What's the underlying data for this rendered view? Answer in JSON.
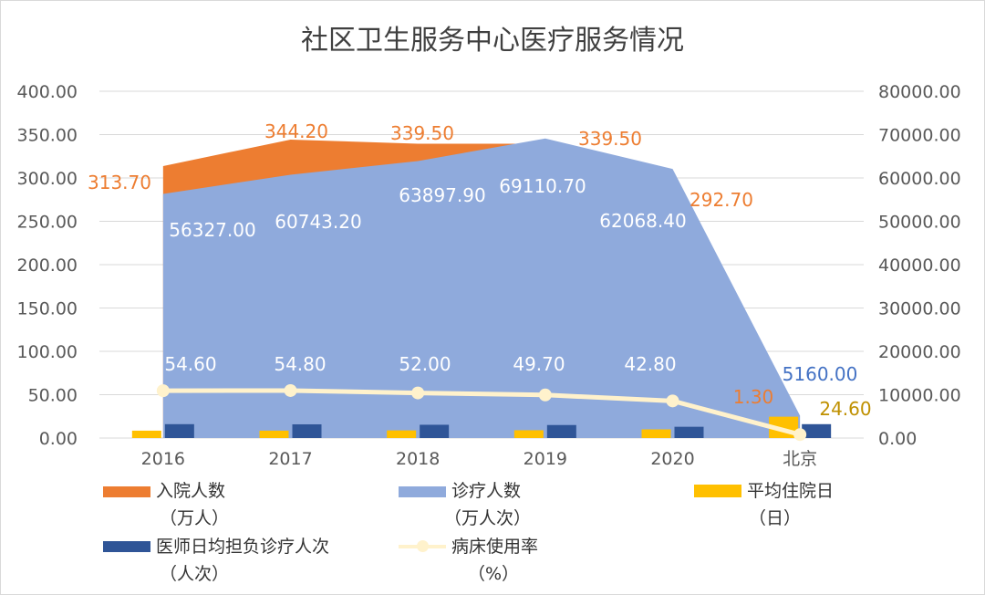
{
  "chart_data": {
    "type": "combo",
    "title": "社区卫生服务中心医疗服务情况",
    "categories": [
      "2016",
      "2017",
      "2018",
      "2019",
      "2020",
      "北京"
    ],
    "left_axis": {
      "min": 0,
      "max": 400,
      "ticks": [
        "0.00",
        "50.00",
        "100.00",
        "150.00",
        "200.00",
        "250.00",
        "300.00",
        "350.00",
        "400.00"
      ]
    },
    "right_axis": {
      "min": 0,
      "max": 80000,
      "ticks": [
        "0.00",
        "10000.00",
        "20000.00",
        "30000.00",
        "40000.00",
        "50000.00",
        "60000.00",
        "70000.00",
        "80000.00"
      ]
    },
    "grid": true,
    "legend_position": "bottom",
    "series": [
      {
        "key": "admissions",
        "name": "入院人数",
        "unit": "（万人）",
        "type": "area",
        "axis": "left",
        "color": "#ED7D31",
        "values": [
          313.7,
          344.2,
          339.5,
          339.5,
          292.7,
          1.3
        ],
        "labels": [
          "313.70",
          "344.20",
          "339.50",
          "339.50",
          "292.70",
          "1.30"
        ]
      },
      {
        "key": "visits",
        "name": "诊疗人数",
        "unit": "（万人次）",
        "type": "area",
        "axis": "right",
        "color": "#8FAADC",
        "values": [
          56327.0,
          60743.2,
          63897.9,
          69110.7,
          62068.4,
          5160.0
        ],
        "labels": [
          "56327.00",
          "60743.20",
          "63897.90",
          "69110.70",
          "62068.40",
          "5160.00"
        ]
      },
      {
        "key": "avg_stay",
        "name": "平均住院日",
        "unit": "（日）",
        "type": "bar",
        "axis": "left",
        "color": "#FFC000",
        "values": [
          8.5,
          8.5,
          8.8,
          9.0,
          10.0,
          24.6
        ],
        "labels": [
          "",
          "",
          "",
          "",
          "",
          "24.60"
        ]
      },
      {
        "key": "doctor_load",
        "name": "医师日均担负诊疗人次",
        "unit": "（人次）",
        "type": "bar",
        "axis": "left",
        "color": "#2F5597",
        "values": [
          16.0,
          15.8,
          15.3,
          15.0,
          13.0,
          16.0
        ],
        "labels": [
          "",
          "",
          "",
          "",
          "",
          ""
        ]
      },
      {
        "key": "bed_usage",
        "name": "病床使用率",
        "unit": "（%）",
        "type": "line",
        "axis": "left",
        "color": "#FFF2CC",
        "values": [
          54.6,
          54.8,
          52.0,
          49.7,
          42.8,
          4.0
        ],
        "labels": [
          "54.60",
          "54.80",
          "52.00",
          "49.70",
          "42.80",
          ""
        ]
      }
    ]
  }
}
